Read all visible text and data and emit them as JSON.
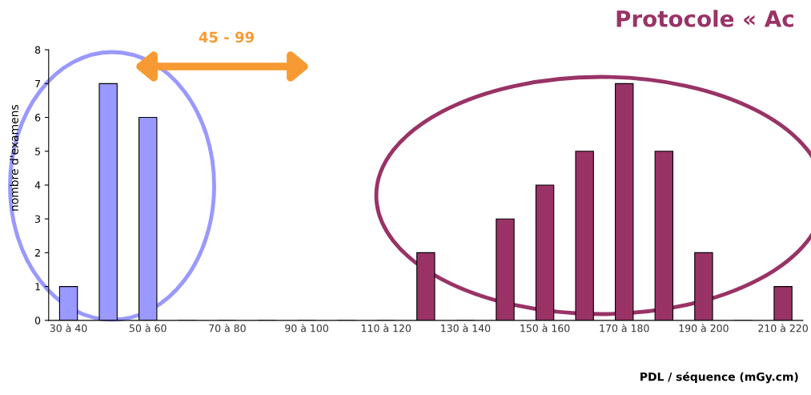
{
  "chart_data": {
    "type": "bar",
    "title": "Protocole « Ac",
    "xlabel": "PDL / séquence (mGy.cm)",
    "ylabel": "nombre d'examens",
    "categories": [
      "30 à 40",
      null,
      "50 à 60",
      null,
      "70 à 80",
      null,
      "90 à 100",
      null,
      "110 à 120",
      null,
      "130 à 140",
      null,
      "150 à 160",
      null,
      "170 à 180",
      null,
      "190 à 200",
      null,
      "210 à 220"
    ],
    "values": [
      1,
      7,
      6,
      0,
      0,
      0,
      0,
      0,
      0,
      2,
      0,
      3,
      4,
      5,
      7,
      5,
      2,
      0,
      1
    ],
    "colors": [
      "#9999ff",
      "#9999ff",
      "#9999ff",
      "#9999ff",
      "#9999ff",
      "#9999ff",
      "#9999ff",
      "#9999ff",
      "#993366",
      "#993366",
      "#993366",
      "#993366",
      "#993366",
      "#993366",
      "#993366",
      "#993366",
      "#993366",
      "#993366",
      "#993366"
    ],
    "ylim": [
      0,
      8
    ],
    "yticks": [
      0,
      1,
      2,
      3,
      4,
      5,
      6,
      7,
      8
    ],
    "grid": false,
    "legend": false,
    "annotations": [
      "45 - 99"
    ]
  }
}
